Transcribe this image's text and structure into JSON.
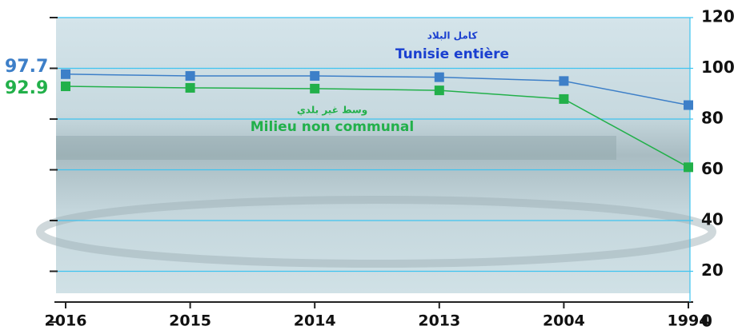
{
  "chart_data": {
    "type": "line",
    "categories": [
      "2016",
      "2015",
      "2014",
      "2013",
      "2004",
      "1994"
    ],
    "series": [
      {
        "name": "Tunisie entière",
        "name_ar": "كامل البلاد",
        "color": "#3d7fc8",
        "label_color": "#1a3fd0",
        "values": [
          97.7,
          97,
          97,
          96.5,
          95,
          85.5
        ]
      },
      {
        "name": "Milieu non communal",
        "name_ar": "وسط غير بلدي",
        "color": "#22b04a",
        "label_color": "#22b04a",
        "values": [
          92.9,
          92.3,
          92,
          91.3,
          87.9,
          61
        ]
      }
    ],
    "ylim": [
      0,
      120
    ],
    "yticks": [
      0,
      20,
      40,
      60,
      80,
      100,
      120
    ],
    "grid": true
  }
}
